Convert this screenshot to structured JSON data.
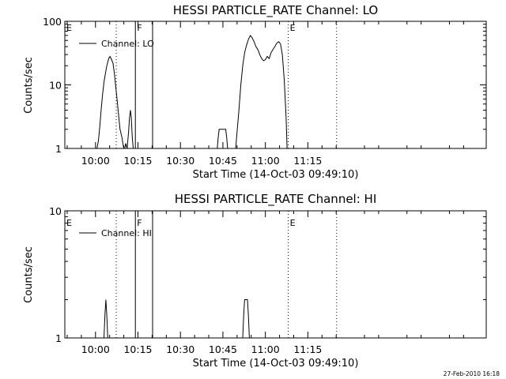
{
  "chart_data": [
    {
      "type": "line",
      "title": "HESSI PARTICLE_RATE Channel: LO",
      "xlabel": "Start Time (14-Oct-03 09:49:10)",
      "ylabel": "Counts/sec",
      "yscale": "log",
      "ylim": [
        1,
        100
      ],
      "y_tick_labels": [
        "1",
        "10",
        "100"
      ],
      "xlim_minutes": [
        589.17,
        738.0
      ],
      "x_tick_labels": [
        "10:00",
        "10:15",
        "10:30",
        "10:45",
        "11:00",
        "11:15"
      ],
      "legend": {
        "label": "Channel: LO",
        "position": "top-left"
      },
      "series": [
        {
          "name": "Channel: LO",
          "x": [
            "10:00:30",
            "10:01:00",
            "10:01:30",
            "10:02:00",
            "10:02:30",
            "10:03:00",
            "10:03:30",
            "10:04:00",
            "10:04:20",
            "10:04:50",
            "10:05:10",
            "10:05:40",
            "10:06:10",
            "10:06:40",
            "10:07:20",
            "10:08:00",
            "10:08:40",
            "10:09:20",
            "10:09:40",
            "10:10:00",
            "10:10:20",
            "10:10:40",
            "10:11:10",
            "10:11:40",
            "10:12:00",
            "10:12:20",
            "10:12:40",
            "10:13:00",
            "10:13:20",
            "10:13:40",
            "10:14:00",
            "10:43:00",
            "10:43:20",
            "10:43:40",
            "10:46:00",
            "10:46:20",
            "10:46:40",
            "10:49:30",
            "10:50:00",
            "10:50:40",
            "10:51:20",
            "10:52:00",
            "10:52:40",
            "10:53:20",
            "10:54:00",
            "10:54:40",
            "10:55:20",
            "10:56:00",
            "10:56:40",
            "10:57:20",
            "10:58:00",
            "10:58:40",
            "10:59:20",
            "11:00:00",
            "11:00:40",
            "11:01:20",
            "11:02:00",
            "11:02:40",
            "11:03:20",
            "11:04:00",
            "11:04:40",
            "11:05:20",
            "11:06:00",
            "11:06:40",
            "11:07:20",
            "11:07:40"
          ],
          "y": [
            1,
            1.3,
            2.2,
            4,
            7,
            11,
            15,
            20,
            23,
            27,
            28,
            25,
            22,
            15,
            8,
            4,
            2,
            1.5,
            1.2,
            1,
            1,
            1.2,
            1,
            1.8,
            3,
            4,
            3,
            1.5,
            1,
            1,
            1,
            1,
            1.5,
            2,
            2,
            1.5,
            1,
            1,
            1.8,
            4,
            10,
            20,
            32,
            42,
            52,
            60,
            55,
            48,
            40,
            36,
            30,
            26,
            24,
            25,
            28,
            26,
            32,
            36,
            40,
            45,
            48,
            44,
            30,
            12,
            3,
            1
          ]
        }
      ],
      "vertical_markers": [
        {
          "label": "E",
          "time": "09:49:10",
          "style": "dotted"
        },
        {
          "label": "",
          "time": "10:07:20",
          "style": "dotted"
        },
        {
          "label": "F",
          "time": "10:14:05",
          "style": "solid"
        },
        {
          "label": "",
          "time": "10:20:10",
          "style": "solid"
        },
        {
          "label": "E",
          "time": "11:08:05",
          "style": "dotted"
        },
        {
          "label": "",
          "time": "11:25:10",
          "style": "dotted"
        }
      ]
    },
    {
      "type": "line",
      "title": "HESSI PARTICLE_RATE Channel: HI",
      "xlabel": "Start Time (14-Oct-03 09:49:10)",
      "ylabel": "Counts/sec",
      "yscale": "log",
      "ylim": [
        1,
        10
      ],
      "y_tick_labels": [
        "1",
        "10"
      ],
      "xlim_minutes": [
        589.17,
        738.0
      ],
      "x_tick_labels": [
        "10:00",
        "10:15",
        "10:30",
        "10:45",
        "11:00",
        "11:15"
      ],
      "legend": {
        "label": "Channel: HI",
        "position": "top-left"
      },
      "series": [
        {
          "name": "Channel: HI",
          "x": [
            "10:03:00",
            "10:03:20",
            "10:03:40",
            "10:04:00",
            "10:04:20",
            "10:52:00",
            "10:52:20",
            "10:52:40",
            "10:53:00",
            "10:53:20",
            "10:53:40",
            "10:54:00",
            "10:54:20",
            "10:54:40"
          ],
          "y": [
            1,
            1.5,
            2,
            1.5,
            1,
            1,
            1.5,
            2,
            2,
            2,
            2,
            1.5,
            1,
            1
          ]
        }
      ],
      "vertical_markers": [
        {
          "label": "E",
          "time": "09:49:10",
          "style": "dotted"
        },
        {
          "label": "",
          "time": "10:07:20",
          "style": "dotted"
        },
        {
          "label": "F",
          "time": "10:14:05",
          "style": "solid"
        },
        {
          "label": "",
          "time": "10:20:10",
          "style": "solid"
        },
        {
          "label": "E",
          "time": "11:08:05",
          "style": "dotted"
        },
        {
          "label": "",
          "time": "11:25:10",
          "style": "dotted"
        }
      ]
    }
  ],
  "footer": {
    "timestamp": "27-Feb-2010 16:18"
  },
  "colors": {
    "background": "#ffffff",
    "foreground": "#000000"
  }
}
